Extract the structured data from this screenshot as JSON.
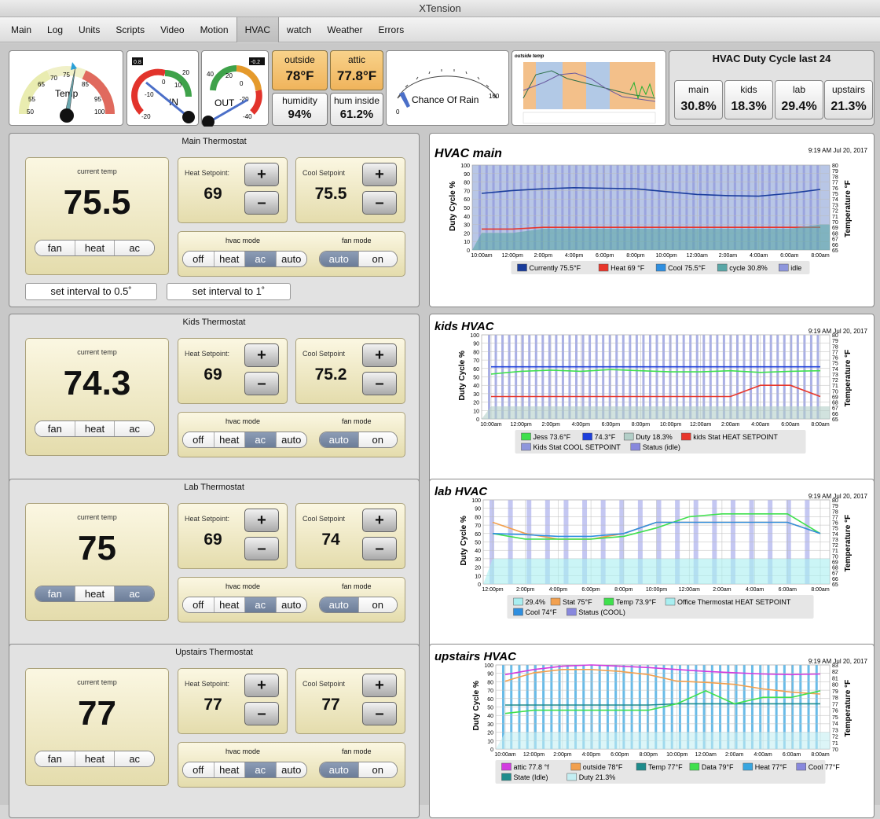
{
  "window_title": "XTension",
  "tabs": [
    {
      "label": "Main"
    },
    {
      "label": "Log"
    },
    {
      "label": "Units"
    },
    {
      "label": "Scripts"
    },
    {
      "label": "Video"
    },
    {
      "label": "Motion"
    },
    {
      "label": "HVAC"
    },
    {
      "label": "watch"
    },
    {
      "label": "Weather"
    },
    {
      "label": "Errors"
    }
  ],
  "active_tab": "HVAC",
  "gauges": {
    "temp": {
      "label": "Temp",
      "ticks": [
        "50",
        "55",
        "65",
        "70",
        "75",
        "85",
        "95",
        "100"
      ],
      "value": 76
    },
    "in": {
      "label": "IN",
      "readout": "0.8",
      "ticks": [
        "-20",
        "-10",
        "0",
        "10",
        "20"
      ]
    },
    "out": {
      "label": "OUT",
      "readout": "-0.2",
      "ticks": [
        "40",
        "20",
        "0",
        "-20",
        "-40"
      ]
    },
    "rain": {
      "label": "Chance Of Rain",
      "ticks": [
        "0",
        "100"
      ],
      "value": 0
    }
  },
  "tiles": {
    "outside": {
      "label": "outside",
      "value": "78°F"
    },
    "attic": {
      "label": "attic",
      "value": "77.8°F"
    },
    "humidity": {
      "label": "humidity",
      "value": "94%"
    },
    "hum_inside": {
      "label": "hum inside",
      "value": "61.2%"
    }
  },
  "mini_chart": {
    "title": "outside temp"
  },
  "duty_cycle": {
    "title": "HVAC Duty Cycle last 24",
    "items": [
      {
        "label": "main",
        "value": "30.8%"
      },
      {
        "label": "kids",
        "value": "18.3%"
      },
      {
        "label": "lab",
        "value": "29.4%"
      },
      {
        "label": "upstairs",
        "value": "21.3%"
      }
    ]
  },
  "common": {
    "current_temp": "current temp",
    "heat_setpoint": "Heat Setpoint:",
    "cool_setpoint": "Cool Setpoint",
    "plus": "+",
    "minus": "–",
    "hvac_mode": "hvac mode",
    "fan_mode": "fan mode",
    "btn_fan": "fan",
    "btn_heat": "heat",
    "btn_ac": "ac",
    "mode_off": "off",
    "mode_heat": "heat",
    "mode_ac": "ac",
    "mode_auto": "auto",
    "fan_auto": "auto",
    "fan_on": "on",
    "interval_half": "set interval to 0.5˚",
    "interval_one": "set interval to 1˚"
  },
  "thermostats": [
    {
      "title": "Main Thermostat",
      "current": "75.5",
      "heat": "69",
      "cool": "75.5",
      "fan_btn": "",
      "hvac_mode": "ac",
      "fan_mode": "auto"
    },
    {
      "title": "Kids Thermostat",
      "current": "74.3",
      "heat": "69",
      "cool": "75.2",
      "fan_btn": "",
      "hvac_mode": "ac",
      "fan_mode": "auto"
    },
    {
      "title": "Lab Thermostat",
      "current": "75",
      "heat": "69",
      "cool": "74",
      "fan_btn": "fan+ac",
      "hvac_mode": "ac",
      "fan_mode": "auto"
    },
    {
      "title": "Upstairs Thermostat",
      "current": "77",
      "heat": "77",
      "cool": "77",
      "fan_btn": "",
      "hvac_mode": "ac",
      "fan_mode": "auto"
    }
  ],
  "chart_data": [
    {
      "type": "area",
      "title": "HVAC main",
      "timestamp": "9:19 AM Jul 20, 2017",
      "ylabel": "Duty Cycle %",
      "y2label": "Temperature °F",
      "ylim": [
        0,
        100
      ],
      "y2lim": [
        65,
        80
      ],
      "x": [
        "10:00am",
        "12:00pm",
        "2:00pm",
        "4:00pm",
        "6:00pm",
        "8:00pm",
        "10:00pm",
        "12:00am",
        "2:00am",
        "4:00am",
        "6:00am",
        "8:00am"
      ],
      "legend": [
        "Currently 75.5°F",
        "Heat 69 °F",
        "Cool 75.5°F",
        "cycle 30.8%",
        "idle"
      ],
      "series": [
        {
          "name": "Currently 75.5°F",
          "color": "#1a3d9c",
          "values": [
            75.0,
            75.5,
            75.8,
            76.0,
            75.9,
            75.8,
            75.3,
            74.8,
            74.6,
            74.5,
            75.0,
            75.7
          ]
        },
        {
          "name": "Heat 69 °F",
          "color": "#e8362b",
          "values": [
            68.7,
            68.7,
            69.0,
            69.0,
            69.0,
            69.0,
            69.0,
            69.0,
            69.0,
            69.0,
            69.0,
            69.0
          ]
        },
        {
          "name": "cycle 30.8%",
          "color": "#5aa7a7",
          "values": [
            20,
            20,
            25,
            25,
            25,
            25,
            25,
            25,
            25,
            25,
            25,
            30
          ]
        }
      ],
      "colors": {
        "bg": "#b8c6e6",
        "line": "#1a3d9c",
        "heat": "#e8362b",
        "cool": "#2f8fe0",
        "duty": "#5aa7a7",
        "idle": "#8e96dc"
      }
    },
    {
      "type": "area",
      "title": "kids HVAC",
      "timestamp": "9:19 AM Jul 20, 2017",
      "ylabel": "Duty Cycle %",
      "y2label": "Temperature °F",
      "ylim": [
        0,
        100
      ],
      "y2lim": [
        65,
        80
      ],
      "x": [
        "10:00am",
        "12:00pm",
        "2:00pm",
        "4:00pm",
        "6:00pm",
        "8:00pm",
        "10:00pm",
        "12:00am",
        "2:00am",
        "4:00am",
        "6:00am",
        "8:00am"
      ],
      "legend": [
        "Jess 73.6°F",
        "74.3°F",
        "Duty 18.3%",
        "kids Stat HEAT SETPOINT",
        "Kids Stat COOL SETPOINT",
        "Status (idle)"
      ],
      "series": [
        {
          "name": "Jess 73.6°F",
          "color": "#3fe04d",
          "values": [
            73.0,
            73.5,
            73.7,
            73.5,
            73.8,
            73.6,
            73.4,
            73.4,
            73.6,
            73.3,
            73.5,
            73.6
          ]
        },
        {
          "name": "74.3°F",
          "color": "#1c3fdc",
          "values": [
            74.3,
            74.3,
            74.3,
            74.3,
            74.3,
            74.3,
            74.3,
            74.3,
            74.3,
            74.3,
            74.3,
            74.3
          ]
        },
        {
          "name": "Duty 18.3%",
          "color": "#b3cfc8",
          "values": [
            15,
            15,
            15,
            15,
            15,
            15,
            15,
            15,
            15,
            15,
            15,
            15
          ]
        },
        {
          "name": "kids Stat HEAT SETPOINT",
          "color": "#e8362b",
          "values": [
            69,
            69,
            69,
            69,
            69,
            69,
            69,
            69,
            69,
            71,
            71,
            69
          ]
        }
      ],
      "colors": {
        "bg": "#ffffff",
        "line": "#1c3fdc",
        "heat": "#e8362b",
        "cool": "#39e3e3",
        "duty": "#b3cfc8",
        "idle": "#8e96dc"
      }
    },
    {
      "type": "area",
      "title": "lab HVAC",
      "timestamp": "9:19 AM Jul 20, 2017",
      "ylabel": "Duty Cycle %",
      "y2label": "Temperature °F",
      "ylim": [
        0,
        100
      ],
      "y2lim": [
        65,
        80
      ],
      "x": [
        "12:00pm",
        "2:00pm",
        "4:00pm",
        "6:00pm",
        "8:00pm",
        "10:00pm",
        "12:00am",
        "2:00am",
        "4:00am",
        "6:00am",
        "8:00am"
      ],
      "legend": [
        "29.4%",
        "Stat 75°F",
        "Temp 73.9°F",
        "Office Thermostat HEAT SETPOINT",
        "Cool 74°F",
        "Status (COOL)"
      ],
      "series": [
        {
          "name": "Stat 75°F",
          "color": "#f2a04e",
          "values": [
            76,
            74,
            73,
            73,
            74,
            76,
            76,
            76,
            76,
            76,
            74
          ]
        },
        {
          "name": "Temp 73.9°F",
          "color": "#3fe04d",
          "values": [
            74,
            73,
            73,
            73,
            73.5,
            75,
            77,
            77.5,
            77.5,
            77.5,
            74
          ]
        },
        {
          "name": "Cool 74°F",
          "color": "#2f8fe0",
          "values": [
            74,
            73.8,
            73.5,
            73.5,
            74,
            76,
            76,
            76,
            76,
            76,
            74
          ]
        },
        {
          "name": "29.4%",
          "color": "#a9eef0",
          "values": [
            30,
            30,
            30,
            30,
            30,
            30,
            30,
            30,
            30,
            30,
            30
          ]
        }
      ],
      "colors": {
        "bg": "#ffffff",
        "line": "#2f8fe0",
        "heat": "#e8362b",
        "cool": "#2f8fe0",
        "duty": "#a9eef0",
        "idle": "#b0b4ee"
      }
    },
    {
      "type": "area",
      "title": "upstairs HVAC",
      "timestamp": "9:19 AM Jul 20, 2017",
      "ylabel": "Duty Cycle %",
      "y2label": "Temperature °F",
      "ylim": [
        0,
        100
      ],
      "y2lim": [
        70,
        83
      ],
      "x": [
        "10:00am",
        "12:00pm",
        "2:00pm",
        "4:00pm",
        "6:00pm",
        "8:00pm",
        "10:00pm",
        "12:00am",
        "2:00am",
        "4:00am",
        "6:00am",
        "8:00am"
      ],
      "legend": [
        "attic 77.8 °f",
        "outside 78°F",
        "Temp 77°F",
        "Data 79°F",
        "Heat 77°F",
        "Cool 77°F",
        "State (Idle)",
        "Duty 21.3%"
      ],
      "series": [
        {
          "name": "attic 77.8 °f",
          "color": "#d23be0",
          "values": [
            81.5,
            82.3,
            82.8,
            83.0,
            82.8,
            82.6,
            82.3,
            82.0,
            81.8,
            81.6,
            81.5,
            81.6
          ]
        },
        {
          "name": "outside 78°F",
          "color": "#f2a04e",
          "values": [
            80.5,
            81.8,
            82.3,
            82.3,
            82.0,
            81.5,
            80.5,
            80.3,
            80.0,
            79.3,
            78.8,
            78.5
          ]
        },
        {
          "name": "Temp 77°F",
          "color": "#1e8c8c",
          "values": [
            76.8,
            76.8,
            76.8,
            76.8,
            76.8,
            76.8,
            77.0,
            77.0,
            77.0,
            77.0,
            77.0,
            77.0
          ]
        },
        {
          "name": "Data 79°F",
          "color": "#3fe04d",
          "values": [
            75.5,
            76,
            76,
            76,
            76,
            76,
            77,
            79,
            77,
            78,
            78,
            79
          ]
        },
        {
          "name": "Duty 21.3%",
          "color": "#c4eef2",
          "values": [
            20,
            20,
            20,
            20,
            20,
            20,
            20,
            20,
            20,
            20,
            20,
            20
          ]
        }
      ],
      "colors": {
        "bg": "#ffffff",
        "line": "#1e8c8c",
        "heat": "#e8362b",
        "cool": "#1c3fdc",
        "duty": "#c4eef2",
        "idle": "#38a6e0"
      }
    }
  ]
}
